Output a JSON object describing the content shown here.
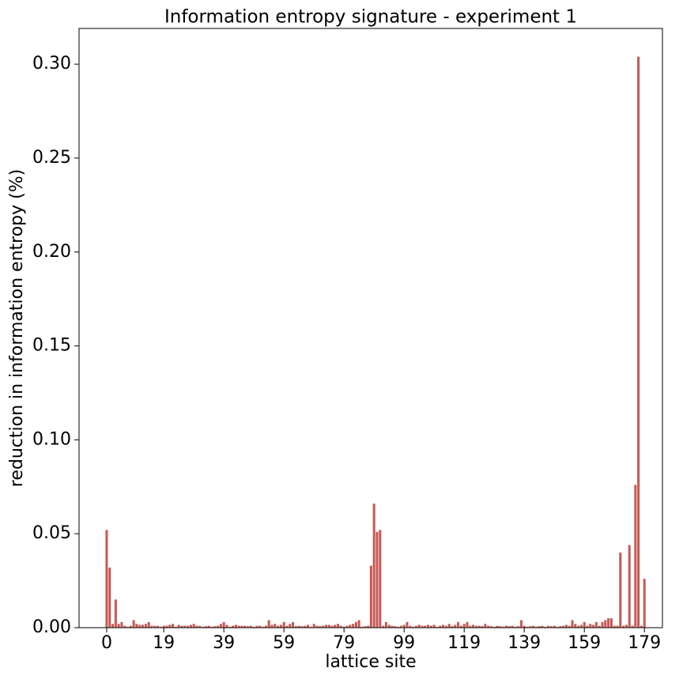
{
  "chart_data": {
    "type": "bar",
    "title": "Information entropy signature - experiment 1",
    "xlabel": "lattice site",
    "ylabel": "reduction in information entropy (%)",
    "color": "#c65a55",
    "x": [
      0,
      1,
      2,
      3,
      4,
      5,
      6,
      7,
      8,
      9,
      10,
      11,
      12,
      13,
      14,
      15,
      16,
      17,
      18,
      19,
      20,
      21,
      22,
      23,
      24,
      25,
      26,
      27,
      28,
      29,
      30,
      31,
      32,
      33,
      34,
      35,
      36,
      37,
      38,
      39,
      40,
      41,
      42,
      43,
      44,
      45,
      46,
      47,
      48,
      49,
      50,
      51,
      52,
      53,
      54,
      55,
      56,
      57,
      58,
      59,
      60,
      61,
      62,
      63,
      64,
      65,
      66,
      67,
      68,
      69,
      70,
      71,
      72,
      73,
      74,
      75,
      76,
      77,
      78,
      79,
      80,
      81,
      82,
      83,
      84,
      85,
      86,
      87,
      88,
      89,
      90,
      91,
      92,
      93,
      94,
      95,
      96,
      97,
      98,
      99,
      100,
      101,
      102,
      103,
      104,
      105,
      106,
      107,
      108,
      109,
      110,
      111,
      112,
      113,
      114,
      115,
      116,
      117,
      118,
      119,
      120,
      121,
      122,
      123,
      124,
      125,
      126,
      127,
      128,
      129,
      130,
      131,
      132,
      133,
      134,
      135,
      136,
      137,
      138,
      139,
      140,
      141,
      142,
      143,
      144,
      145,
      146,
      147,
      148,
      149,
      150,
      151,
      152,
      153,
      154,
      155,
      156,
      157,
      158,
      159,
      160,
      161,
      162,
      163,
      164,
      165,
      166,
      167,
      168,
      169,
      170,
      171,
      172,
      173,
      174,
      175,
      176,
      177,
      178,
      179
    ],
    "values": [
      0.052,
      0.032,
      0.002,
      0.015,
      0.002,
      0.003,
      0.001,
      0.0005,
      0.001,
      0.004,
      0.002,
      0.0015,
      0.0015,
      0.002,
      0.003,
      0.001,
      0.001,
      0.001,
      0.0005,
      0.001,
      0.001,
      0.0015,
      0.002,
      0.0005,
      0.0015,
      0.001,
      0.001,
      0.001,
      0.0015,
      0.002,
      0.001,
      0.001,
      0.0005,
      0.0008,
      0.001,
      0.0005,
      0.0008,
      0.001,
      0.002,
      0.003,
      0.0015,
      0.0005,
      0.001,
      0.0015,
      0.001,
      0.001,
      0.001,
      0.0008,
      0.001,
      0.0005,
      0.001,
      0.001,
      0.0005,
      0.001,
      0.004,
      0.0015,
      0.002,
      0.001,
      0.0015,
      0.003,
      0.001,
      0.002,
      0.003,
      0.0008,
      0.001,
      0.0008,
      0.001,
      0.0015,
      0.0005,
      0.002,
      0.001,
      0.0008,
      0.001,
      0.0015,
      0.0015,
      0.001,
      0.0015,
      0.002,
      0.001,
      0.0005,
      0.001,
      0.0015,
      0.002,
      0.003,
      0.004,
      0.0005,
      0.0008,
      0.001,
      0.033,
      0.066,
      0.051,
      0.052,
      0.001,
      0.003,
      0.0015,
      0.001,
      0.0008,
      0.0005,
      0.001,
      0.0015,
      0.003,
      0.001,
      0.0005,
      0.001,
      0.0015,
      0.001,
      0.001,
      0.0015,
      0.001,
      0.0015,
      0.0005,
      0.001,
      0.0015,
      0.001,
      0.002,
      0.0008,
      0.0015,
      0.003,
      0.001,
      0.002,
      0.003,
      0.001,
      0.0015,
      0.001,
      0.001,
      0.0008,
      0.002,
      0.001,
      0.0008,
      0.0005,
      0.001,
      0.0008,
      0.0005,
      0.001,
      0.0008,
      0.001,
      0.0005,
      0.0008,
      0.004,
      0.001,
      0.0005,
      0.0008,
      0.001,
      0.0005,
      0.0008,
      0.001,
      0.0005,
      0.001,
      0.0008,
      0.001,
      0.0005,
      0.0008,
      0.001,
      0.0015,
      0.001,
      0.004,
      0.002,
      0.001,
      0.0015,
      0.003,
      0.001,
      0.002,
      0.0015,
      0.003,
      0.001,
      0.003,
      0.004,
      0.005,
      0.005,
      0.001,
      0.001,
      0.04,
      0.001,
      0.0015,
      0.044,
      0.001,
      0.076,
      0.304,
      0.001,
      0.026
    ],
    "xlim": [
      -9.2,
      185.0
    ],
    "ylim": [
      0,
      0.319
    ],
    "xticks": [
      0,
      19,
      39,
      59,
      79,
      99,
      119,
      139,
      159,
      179
    ],
    "yticks": [
      {
        "value": 0,
        "label": "0.00"
      },
      {
        "value": 0.05,
        "label": "0.05"
      },
      {
        "value": 0.1,
        "label": "0.10"
      },
      {
        "value": 0.15,
        "label": "0.15"
      },
      {
        "value": 0.2,
        "label": "0.20"
      },
      {
        "value": 0.25,
        "label": "0.25"
      },
      {
        "value": 0.3,
        "label": "0.30"
      }
    ],
    "grid": false
  }
}
